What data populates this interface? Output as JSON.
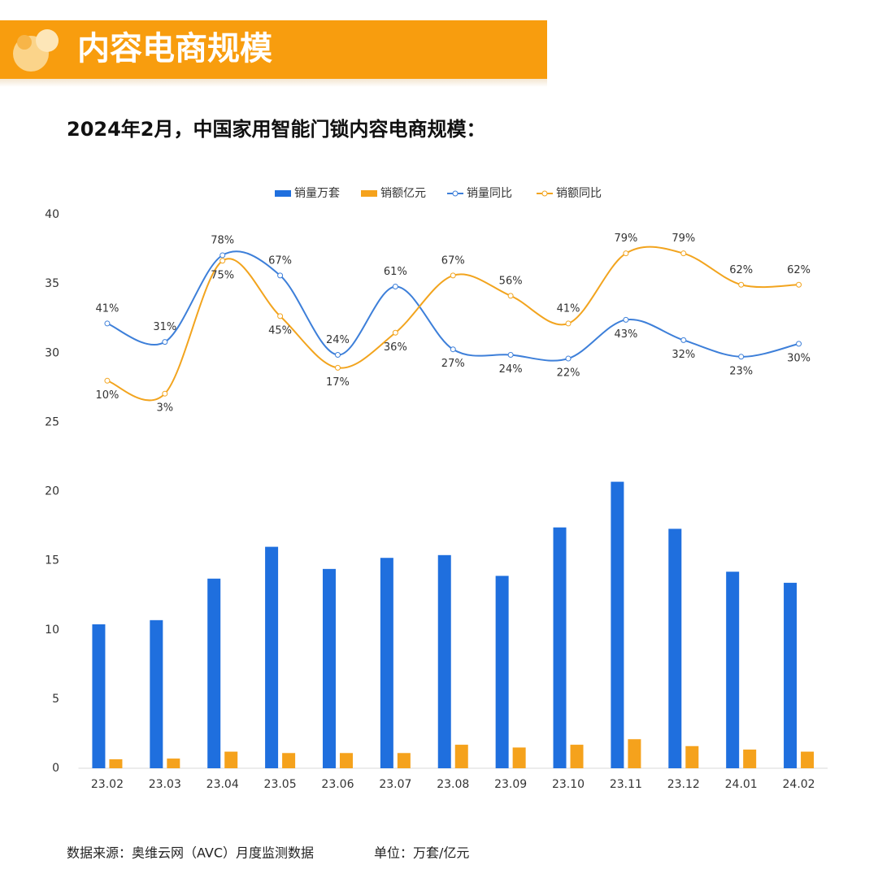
{
  "header": {
    "title": "内容电商规模"
  },
  "chart_data": {
    "type": "bar",
    "title": "2024年2月，中国家用智能门锁内容电商规模：",
    "categories": [
      "23.02",
      "23.03",
      "23.04",
      "23.05",
      "23.06",
      "23.07",
      "23.08",
      "23.09",
      "23.10",
      "23.11",
      "23.12",
      "24.01",
      "24.02"
    ],
    "series": [
      {
        "name": "销量万套",
        "type": "bar",
        "color": "#1f6fde",
        "values": [
          10.4,
          10.7,
          13.7,
          16.0,
          14.4,
          15.2,
          15.4,
          13.9,
          17.4,
          20.7,
          17.3,
          14.2,
          13.4
        ]
      },
      {
        "name": "销额亿元",
        "type": "bar",
        "color": "#f5a21c",
        "values": [
          0.65,
          0.7,
          1.2,
          1.1,
          1.1,
          1.1,
          1.7,
          1.5,
          1.7,
          2.1,
          1.6,
          1.35,
          1.2
        ]
      },
      {
        "name": "销量同比",
        "type": "line",
        "axis": "y2",
        "color": "#3d7fd9",
        "values": [
          41,
          31,
          78,
          67,
          24,
          61,
          27,
          24,
          22,
          43,
          32,
          23,
          30
        ],
        "value_labels": [
          "41%",
          "31%",
          "78%",
          "67%",
          "24%",
          "61%",
          "27%",
          "24%",
          "22%",
          "43%",
          "32%",
          "23%",
          "30%"
        ]
      },
      {
        "name": "销额同比",
        "type": "line",
        "axis": "y2",
        "color": "#f2a41e",
        "values": [
          10,
          3,
          75,
          45,
          17,
          36,
          67,
          56,
          41,
          79,
          79,
          62,
          62
        ],
        "value_labels": [
          "10%",
          "3%",
          "75%",
          "45%",
          "17%",
          "36%",
          "67%",
          "56%",
          "41%",
          "79%",
          "79%",
          "62%",
          "62%"
        ]
      }
    ],
    "ylim": [
      0,
      40
    ],
    "yticks": [
      0,
      5,
      10,
      15,
      20,
      25,
      30,
      35,
      40
    ],
    "y2lim": [
      -200,
      100
    ],
    "legend": "top"
  },
  "footer": {
    "source": "数据来源：奥维云网（AVC）月度监测数据",
    "unit": "单位：万套/亿元"
  }
}
